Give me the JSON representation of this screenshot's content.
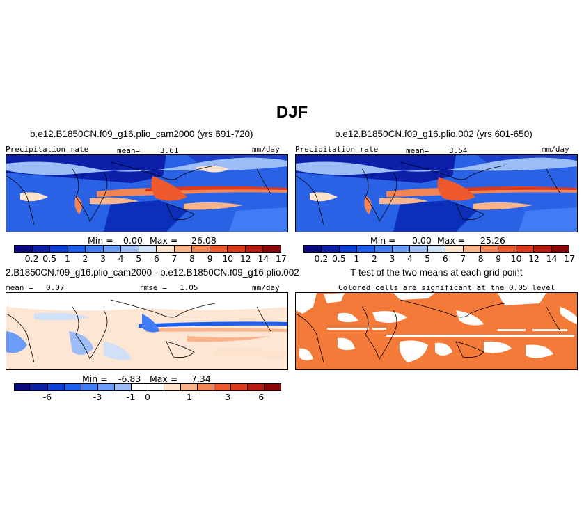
{
  "season_title": "DJF",
  "panels": {
    "p1": {
      "title": "b.e12.B1850CN.f09_g16.plio_cam2000 (yrs 691-720)",
      "left_label": "Precipitation rate",
      "mean_label": "mean=",
      "mean_value": "3.61",
      "units": "mm/day",
      "min_label": "Min =",
      "min_value": "0.00",
      "max_label": "Max =",
      "max_value": "26.08"
    },
    "p2": {
      "title": "b.e12.B1850CN.f09_g16.plio.002 (yrs 601-650)",
      "left_label": "Precipitation rate",
      "mean_label": "mean=",
      "mean_value": "3.54",
      "units": "mm/day",
      "min_label": "Min =",
      "min_value": "0.00",
      "max_label": "Max =",
      "max_value": "25.26"
    },
    "p3": {
      "title": "2.B1850CN.f09_g16.plio_cam2000 - b.e12.B1850CN.f09_g16.plio.002",
      "mean_label": "mean =",
      "mean_value": "0.07",
      "rmse_label": "rmse =",
      "rmse_value": "1.05",
      "units": "mm/day",
      "min_label": "Min =",
      "min_value": "-6.83",
      "max_label": "Max =",
      "max_value": "7.34"
    },
    "p4": {
      "title": "T-test of the two means at each grid point",
      "subtitle": "Colored cells are significant at the 0.05 level"
    }
  },
  "colorbars": {
    "precip": {
      "colors": [
        "#0a0a80",
        "#0b1fa8",
        "#0b3fd8",
        "#1c5ff0",
        "#3f7cf5",
        "#6b9cf7",
        "#9dbdf7",
        "#cfe0f7",
        "#fde2cc",
        "#f9b48a",
        "#f38454",
        "#ee5a2e",
        "#dd3a1c",
        "#b81c10",
        "#8a0606"
      ],
      "labels": [
        "0.2",
        "0.5",
        "1",
        "2",
        "3",
        "4",
        "5",
        "6",
        "7",
        "8",
        "9",
        "10",
        "12",
        "14",
        "17"
      ]
    },
    "diff": {
      "colors": [
        "#0a0a80",
        "#0b1fa8",
        "#0b3fd8",
        "#1c5ff0",
        "#3f7cf5",
        "#6b9cf7",
        "#9dbdf7",
        "#ffffff",
        "#ffffff",
        "#fde2cc",
        "#f9b48a",
        "#f38454",
        "#ee5a2e",
        "#dd3a1c",
        "#b81c10",
        "#8a0606"
      ],
      "labels": [
        "-6",
        "-3",
        "-1",
        "0",
        "1",
        "3",
        "6"
      ]
    }
  },
  "ttest_color": "#f47a3a"
}
